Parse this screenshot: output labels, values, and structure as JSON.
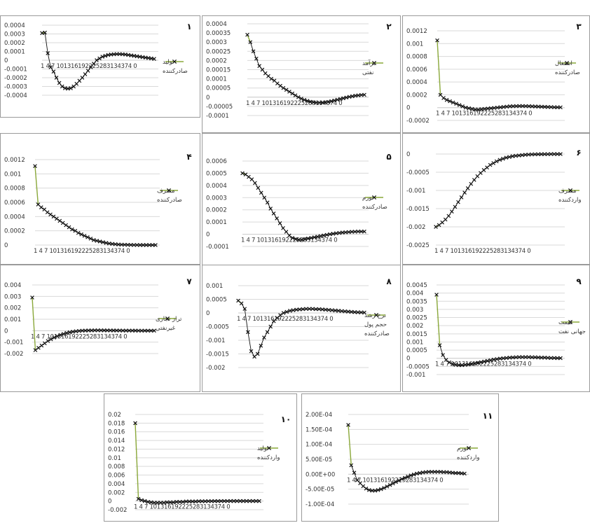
{
  "colors": {
    "first_segment": "#8aa83a",
    "series": "#111111",
    "grid": "#d9d9d9",
    "frame": "#9a9a9a"
  },
  "chart_data": [
    {
      "id": 1,
      "type": "line",
      "panel_number": "۱",
      "legend": [
        "تولید",
        "صادرکننده"
      ],
      "x": [
        1,
        2,
        3,
        4,
        5,
        6,
        7,
        8,
        9,
        10,
        11,
        12,
        13,
        14,
        15,
        16,
        17,
        18,
        19,
        20,
        21,
        22,
        23,
        24,
        25,
        26,
        27,
        28,
        29,
        30,
        31,
        32,
        33,
        34,
        35,
        36,
        37,
        38,
        39,
        40
      ],
      "x_tick_text": "1  4  7  101316192225283134374 0",
      "ylim": [
        -0.0004,
        0.0004
      ],
      "yticks": [
        "0.0004",
        "0.0003",
        "0.0002",
        "0.0001",
        "0",
        "-0.0001",
        "-0.0002",
        "-0.0003",
        "-0.0004"
      ],
      "values": [
        0.00031,
        0.000315,
        8e-05,
        -8e-05,
        -0.00013,
        -0.0002,
        -0.00026,
        -0.0003,
        -0.00032,
        -0.000325,
        -0.00032,
        -0.0003,
        -0.00027,
        -0.000235,
        -0.0002,
        -0.00016,
        -0.00012,
        -8e-05,
        -4e-05,
        0.0,
        2e-05,
        4e-05,
        5e-05,
        6e-05,
        6.5e-05,
        6.8e-05,
        7e-05,
        7e-05,
        6.8e-05,
        6.5e-05,
        6e-05,
        5.5e-05,
        5e-05,
        4.5e-05,
        4e-05,
        3.5e-05,
        3e-05,
        2.5e-05,
        2e-05,
        1.5e-05
      ]
    },
    {
      "id": 2,
      "type": "line",
      "panel_number": "۲",
      "legend": [
        "درآمد",
        "نفتی"
      ],
      "x": [
        1,
        2,
        3,
        4,
        5,
        6,
        7,
        8,
        9,
        10,
        11,
        12,
        13,
        14,
        15,
        16,
        17,
        18,
        19,
        20,
        21,
        22,
        23,
        24,
        25,
        26,
        27,
        28,
        29,
        30,
        31,
        32,
        33,
        34,
        35,
        36,
        37,
        38,
        39,
        40
      ],
      "x_tick_text": "1  4  7  101316192225283134374 0",
      "ylim": [
        -0.0001,
        0.0004
      ],
      "yticks": [
        "0.0004",
        "0.00035",
        "0.0003",
        "0.00025",
        "0.0002",
        "0.00015",
        "0.0001",
        "0.00005",
        "0",
        "-0.00005",
        "-0.0001"
      ],
      "values": [
        0.00034,
        0.0003,
        0.00025,
        0.00021,
        0.00017,
        0.00015,
        0.00013,
        0.000115,
        0.0001,
        9e-05,
        7.5e-05,
        6.2e-05,
        5e-05,
        4e-05,
        3e-05,
        2e-05,
        1e-05,
        0.0,
        -8e-06,
        -1.5e-05,
        -2e-05,
        -2.5e-05,
        -2.8e-05,
        -3e-05,
        -3e-05,
        -3e-05,
        -2.8e-05,
        -2.6e-05,
        -2.2e-05,
        -1.8e-05,
        -1.4e-05,
        -1e-05,
        -6e-06,
        -2e-06,
        2e-06,
        5e-06,
        8e-06,
        1e-05,
        1.2e-05,
        1.3e-05
      ]
    },
    {
      "id": 3,
      "type": "line",
      "panel_number": "۳",
      "legend": [
        "اشتغال",
        "صادرکننده"
      ],
      "x": [
        1,
        2,
        3,
        4,
        5,
        6,
        7,
        8,
        9,
        10,
        11,
        12,
        13,
        14,
        15,
        16,
        17,
        18,
        19,
        20,
        21,
        22,
        23,
        24,
        25,
        26,
        27,
        28,
        29,
        30,
        31,
        32,
        33,
        34,
        35,
        36,
        37,
        38,
        39,
        40
      ],
      "x_tick_text": "1  4  7  101316192225283134374 0",
      "ylim": [
        -0.0002,
        0.0012
      ],
      "yticks": [
        "0.0012",
        "0.001",
        "0.0008",
        "0.0006",
        "0.0004",
        "0.0002",
        "0",
        "-0.0002"
      ],
      "values": [
        0.00105,
        0.0002,
        0.00015,
        0.00012,
        0.0001,
        8e-05,
        6e-05,
        4e-05,
        2e-05,
        0.0,
        -1e-05,
        -2e-05,
        -3e-05,
        -3e-05,
        -2.5e-05,
        -2e-05,
        -1.5e-05,
        -1e-05,
        -5e-06,
        0.0,
        5e-06,
        1e-05,
        1.5e-05,
        2e-05,
        2.2e-05,
        2.4e-05,
        2.5e-05,
        2.5e-05,
        2.4e-05,
        2.2e-05,
        2e-05,
        1.8e-05,
        1.6e-05,
        1.4e-05,
        1.2e-05,
        1e-05,
        8e-06,
        6e-06,
        5e-06,
        4e-06
      ]
    },
    {
      "id": 4,
      "type": "line",
      "panel_number": "۴",
      "legend": [
        "مصرف",
        "صادرکننده"
      ],
      "x": [
        1,
        2,
        3,
        4,
        5,
        6,
        7,
        8,
        9,
        10,
        11,
        12,
        13,
        14,
        15,
        16,
        17,
        18,
        19,
        20,
        21,
        22,
        23,
        24,
        25,
        26,
        27,
        28,
        29,
        30,
        31,
        32,
        33,
        34,
        35,
        36,
        37,
        38,
        39,
        40
      ],
      "x_tick_text": "1  4  7  101316192225283134374 0",
      "ylim": [
        0,
        0.0012
      ],
      "yticks": [
        "0.0012",
        "0.001",
        "0.0008",
        "0.0006",
        "0.0004",
        "0.0002",
        "0"
      ],
      "values": [
        0.00111,
        0.00057,
        0.00053,
        0.0005,
        0.00046,
        0.00043,
        0.0004,
        0.00037,
        0.00034,
        0.00031,
        0.00028,
        0.00025,
        0.00022,
        0.0002,
        0.00017,
        0.00015,
        0.00013,
        0.00011,
        9e-05,
        7e-05,
        6e-05,
        5e-05,
        4e-05,
        3e-05,
        2.2e-05,
        1.6e-05,
        1.2e-05,
        8e-06,
        6e-06,
        4e-06,
        3e-06,
        2e-06,
        1e-06,
        1e-06,
        0.0,
        0.0,
        0.0,
        0.0,
        0.0,
        0.0
      ]
    },
    {
      "id": 5,
      "type": "line",
      "panel_number": "۵",
      "legend": [
        "تورم",
        "صادرکننده"
      ],
      "x": [
        1,
        2,
        3,
        4,
        5,
        6,
        7,
        8,
        9,
        10,
        11,
        12,
        13,
        14,
        15,
        16,
        17,
        18,
        19,
        20,
        21,
        22,
        23,
        24,
        25,
        26,
        27,
        28,
        29,
        30,
        31,
        32,
        33,
        34,
        35,
        36,
        37,
        38,
        39,
        40
      ],
      "x_tick_text": "1  4  7  101316192225283134374 0",
      "ylim": [
        -0.0001,
        0.0006
      ],
      "yticks": [
        "0.0006",
        "0.0005",
        "0.0004",
        "0.0003",
        "0.0002",
        "0.0001",
        "0",
        "-0.0001"
      ],
      "values": [
        0.0005,
        0.00049,
        0.00047,
        0.00045,
        0.00042,
        0.00038,
        0.00034,
        0.0003,
        0.00026,
        0.00021,
        0.00017,
        0.00013,
        9e-05,
        5e-05,
        2e-05,
        -1e-05,
        -3e-05,
        -4e-05,
        -4.5e-05,
        -4.5e-05,
        -4e-05,
        -3.5e-05,
        -3e-05,
        -2.5e-05,
        -2e-05,
        -1.5e-05,
        -1e-05,
        -5e-06,
        0.0,
        4e-06,
        8e-06,
        1.1e-05,
        1.4e-05,
        1.6e-05,
        1.8e-05,
        2e-05,
        2.1e-05,
        2.2e-05,
        2.2e-05,
        2.2e-05
      ]
    },
    {
      "id": 6,
      "type": "line",
      "panel_number": "۶",
      "legend": [
        "مصرف",
        "واردکننده"
      ],
      "x": [
        1,
        2,
        3,
        4,
        5,
        6,
        7,
        8,
        9,
        10,
        11,
        12,
        13,
        14,
        15,
        16,
        17,
        18,
        19,
        20,
        21,
        22,
        23,
        24,
        25,
        26,
        27,
        28,
        29,
        30,
        31,
        32,
        33,
        34,
        35,
        36,
        37,
        38,
        39,
        40
      ],
      "x_tick_text": "1  4  7  101316192225283134374 0",
      "ylim": [
        -0.0025,
        0.0
      ],
      "yticks": [
        "0",
        "-0.0005",
        "-0.001",
        "-0.0015",
        "-0.002",
        "-0.0025"
      ],
      "values": [
        -0.002,
        -0.00195,
        -0.00188,
        -0.0018,
        -0.0017,
        -0.00158,
        -0.00145,
        -0.00132,
        -0.00119,
        -0.00106,
        -0.00094,
        -0.00082,
        -0.00071,
        -0.00061,
        -0.00052,
        -0.00044,
        -0.00037,
        -0.0003,
        -0.00025,
        -0.0002,
        -0.00016,
        -0.00013,
        -0.0001,
        -8e-05,
        -6e-05,
        -5e-05,
        -4e-05,
        -3e-05,
        -2e-05,
        -1.5e-05,
        -1e-05,
        -8e-06,
        -6e-06,
        -5e-06,
        -4e-06,
        -3e-06,
        -2e-06,
        -2e-06,
        -1e-06,
        -1e-06
      ]
    },
    {
      "id": 7,
      "type": "line",
      "panel_number": "۷",
      "legend": [
        "تراز تجاری",
        "غیرنفتی"
      ],
      "x": [
        1,
        2,
        3,
        4,
        5,
        6,
        7,
        8,
        9,
        10,
        11,
        12,
        13,
        14,
        15,
        16,
        17,
        18,
        19,
        20,
        21,
        22,
        23,
        24,
        25,
        26,
        27,
        28,
        29,
        30,
        31,
        32,
        33,
        34,
        35,
        36,
        37,
        38,
        39,
        40
      ],
      "x_tick_text": "1  4  7  101316192225283134374 0",
      "ylim": [
        -0.002,
        0.004
      ],
      "yticks": [
        "0.004",
        "0.003",
        "0.002",
        "0.001",
        "0",
        "-0.001",
        "-0.002"
      ],
      "values": [
        0.0029,
        -0.0017,
        -0.0015,
        -0.0013,
        -0.0011,
        -0.0009,
        -0.00075,
        -0.0006,
        -0.00048,
        -0.00037,
        -0.00028,
        -0.0002,
        -0.00014,
        -9e-05,
        -5e-05,
        -2e-05,
        0.0,
        1e-05,
        2e-05,
        2.5e-05,
        3e-05,
        3e-05,
        3e-05,
        2.8e-05,
        2.5e-05,
        2.2e-05,
        2e-05,
        1.7e-05,
        1.4e-05,
        1.2e-05,
        1e-05,
        8e-06,
        6e-06,
        5e-06,
        4e-06,
        3e-06,
        2e-06,
        2e-06,
        1e-06,
        1e-06
      ]
    },
    {
      "id": 8,
      "type": "line",
      "panel_number": "۸",
      "legend": [
        "نرخ رشد",
        "حجم پول",
        "صادرکننده"
      ],
      "x": [
        1,
        2,
        3,
        4,
        5,
        6,
        7,
        8,
        9,
        10,
        11,
        12,
        13,
        14,
        15,
        16,
        17,
        18,
        19,
        20,
        21,
        22,
        23,
        24,
        25,
        26,
        27,
        28,
        29,
        30,
        31,
        32,
        33,
        34,
        35,
        36,
        37,
        38,
        39,
        40
      ],
      "x_tick_text": "1  4  7  101316192225283134374 0",
      "ylim": [
        -0.002,
        0.001
      ],
      "yticks": [
        "0.001",
        "0.0005",
        "0",
        "-0.0005",
        "-0.001",
        "-0.0015",
        "-0.002"
      ],
      "values": [
        0.00045,
        0.00035,
        0.00015,
        -0.0007,
        -0.0014,
        -0.0016,
        -0.0015,
        -0.0012,
        -0.0009,
        -0.0007,
        -0.0005,
        -0.0003,
        -0.00018,
        -8e-05,
        0.0,
        4e-05,
        8e-05,
        0.0001,
        0.00012,
        0.00013,
        0.00014,
        0.00015,
        0.00015,
        0.00015,
        0.00014,
        0.00014,
        0.00013,
        0.00012,
        0.00011,
        0.0001,
        9e-05,
        8e-05,
        7e-05,
        6e-05,
        5e-05,
        4e-05,
        3e-05,
        2.5e-05,
        2e-05,
        1.5e-05
      ]
    },
    {
      "id": 9,
      "type": "line",
      "panel_number": "۹",
      "legend": [
        "قیمت",
        "جهانی نفت"
      ],
      "x": [
        1,
        2,
        3,
        4,
        5,
        6,
        7,
        8,
        9,
        10,
        11,
        12,
        13,
        14,
        15,
        16,
        17,
        18,
        19,
        20,
        21,
        22,
        23,
        24,
        25,
        26,
        27,
        28,
        29,
        30,
        31,
        32,
        33,
        34,
        35,
        36,
        37,
        38,
        39,
        40
      ],
      "x_tick_text": "1  4  7  101316192225283134374 0",
      "ylim": [
        -0.001,
        0.0045
      ],
      "yticks": [
        "0.0045",
        "0.004",
        "0.0035",
        "0.003",
        "0.0025",
        "0.002",
        "0.0015",
        "0.001",
        "0.0005",
        "0",
        "-0.0005",
        "-0.001"
      ],
      "values": [
        0.0039,
        0.0008,
        0.0002,
        -0.0001,
        -0.00025,
        -0.00035,
        -0.0004,
        -0.00042,
        -0.00042,
        -0.0004,
        -0.00038,
        -0.00035,
        -0.00032,
        -0.00028,
        -0.00024,
        -0.0002,
        -0.00016,
        -0.00012,
        -8e-05,
        -5e-05,
        -2e-05,
        0.0,
        2e-05,
        4e-05,
        5e-05,
        6e-05,
        7e-05,
        7e-05,
        7e-05,
        7e-05,
        6e-05,
        6e-05,
        5e-05,
        4e-05,
        4e-05,
        3e-05,
        2e-05,
        2e-05,
        1e-05,
        1e-05
      ]
    },
    {
      "id": 10,
      "type": "line",
      "panel_number": "۱۰",
      "legend": [
        "تولید",
        "واردکننده"
      ],
      "x": [
        1,
        2,
        3,
        4,
        5,
        6,
        7,
        8,
        9,
        10,
        11,
        12,
        13,
        14,
        15,
        16,
        17,
        18,
        19,
        20,
        21,
        22,
        23,
        24,
        25,
        26,
        27,
        28,
        29,
        30,
        31,
        32,
        33,
        34,
        35,
        36,
        37,
        38,
        39,
        40
      ],
      "x_tick_text": "1  4  7  101316192225283134374 0",
      "ylim": [
        -0.002,
        0.02
      ],
      "yticks": [
        "0.02",
        "0.018",
        "0.016",
        "0.014",
        "0.012",
        "0.01",
        "0.008",
        "0.006",
        "0.004",
        "0.002",
        "0",
        "-0.002"
      ],
      "values": [
        0.018,
        0.0005,
        0.0002,
        0.0,
        -0.0002,
        -0.0003,
        -0.0004,
        -0.0004,
        -0.0004,
        -0.0004,
        -0.0003,
        -0.0003,
        -0.0003,
        -0.0002,
        -0.0002,
        -0.0002,
        -0.0001,
        -0.0001,
        -0.0001,
        -0.0001,
        -5e-05,
        -5e-05,
        -5e-05,
        -3e-05,
        -3e-05,
        -2e-05,
        -2e-05,
        -1e-05,
        -1e-05,
        -1e-05,
        0.0,
        0.0,
        0.0,
        0.0,
        0.0,
        0.0,
        0.0,
        0.0,
        0.0,
        0.0
      ]
    },
    {
      "id": 11,
      "type": "line",
      "panel_number": "۱۱",
      "legend": [
        "تورم",
        "واردکننده"
      ],
      "x": [
        1,
        2,
        3,
        4,
        5,
        6,
        7,
        8,
        9,
        10,
        11,
        12,
        13,
        14,
        15,
        16,
        17,
        18,
        19,
        20,
        21,
        22,
        23,
        24,
        25,
        26,
        27,
        28,
        29,
        30,
        31,
        32,
        33,
        34,
        35,
        36,
        37,
        38,
        39,
        40
      ],
      "x_tick_text": "1  4  7  101316192225283134374 0",
      "ylim": [
        -0.0001,
        0.0002
      ],
      "yticks": [
        "2.00E-04",
        "1.50E-04",
        "1.00E-04",
        "5.00E-05",
        "0.00E+00",
        "-5.00E-05",
        "-1.00E-04"
      ],
      "values": [
        0.000165,
        3e-05,
        5e-06,
        -2e-05,
        -3e-05,
        -4e-05,
        -4.8e-05,
        -5.3e-05,
        -5.5e-05,
        -5.5e-05,
        -5.3e-05,
        -5e-05,
        -4.6e-05,
        -4.1e-05,
        -3.6e-05,
        -3.1e-05,
        -2.6e-05,
        -2.1e-05,
        -1.6e-05,
        -1.2e-05,
        -8e-06,
        -4e-06,
        -1e-06,
        2e-06,
        4e-06,
        6e-06,
        7e-06,
        8e-06,
        8e-06,
        8e-06,
        8e-06,
        8e-06,
        7e-06,
        7e-06,
        6e-06,
        5e-06,
        4e-06,
        4e-06,
        3e-06,
        2e-06
      ]
    }
  ]
}
